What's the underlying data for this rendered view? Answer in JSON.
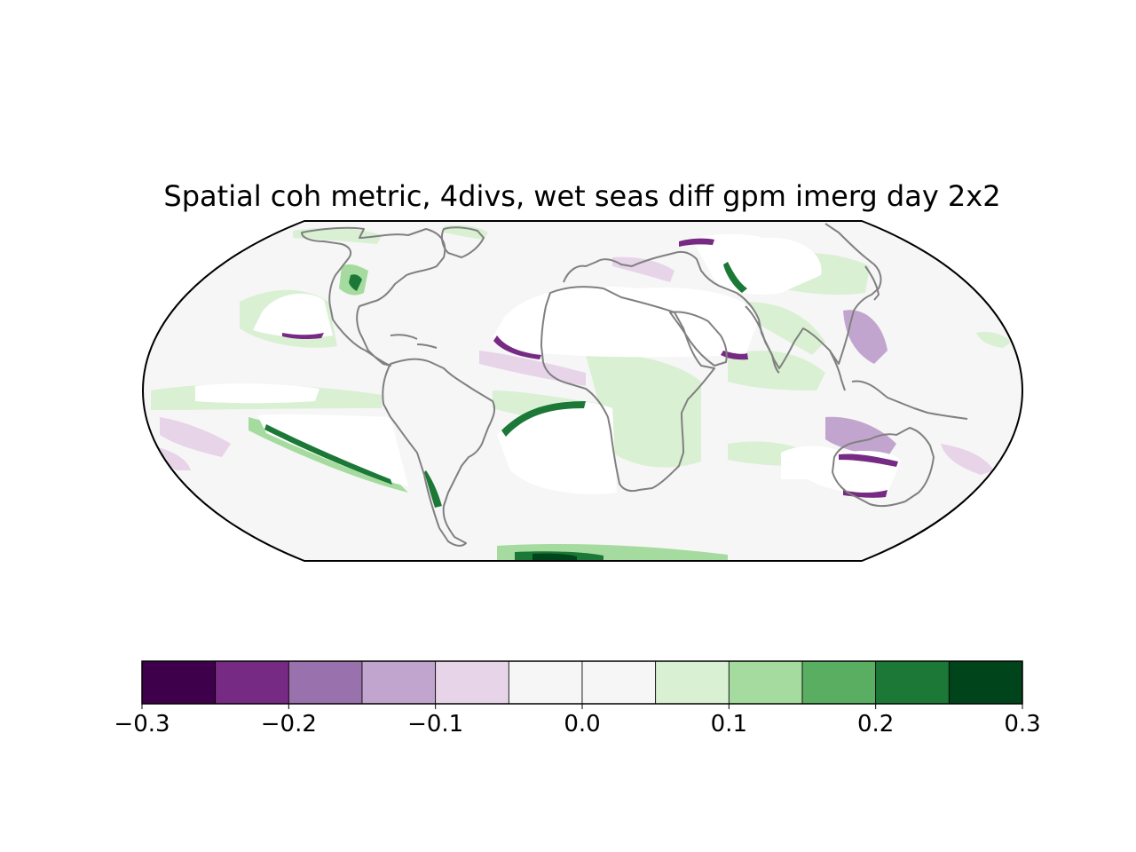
{
  "title": "Spatial coh metric, 4divs, wet seas diff gpm imerg day 2x2",
  "map": {
    "projection": "robinson-like",
    "background_value_color": "#f6f6f6",
    "masked_color": "#ffffff",
    "coastline_color": "#808080",
    "frame_color": "#000000"
  },
  "colorbar": {
    "colors": [
      "#3f004b",
      "#772a83",
      "#9971ac",
      "#c2a5cf",
      "#e7d4e8",
      "#f6f6f6",
      "#f6f6f6",
      "#d9f0d3",
      "#a6db9f",
      "#5aae61",
      "#1b7836",
      "#00441b"
    ],
    "boundaries": [
      -0.3,
      -0.25,
      -0.2,
      -0.15,
      -0.1,
      -0.05,
      0.0,
      0.05,
      0.1,
      0.15,
      0.2,
      0.25,
      0.3
    ],
    "tick_values": [
      -0.3,
      -0.2,
      -0.1,
      0.0,
      0.1,
      0.2,
      0.3
    ],
    "tick_labels": [
      "−0.3",
      "−0.2",
      "−0.1",
      "0.0",
      "0.1",
      "0.2",
      "0.3"
    ]
  }
}
